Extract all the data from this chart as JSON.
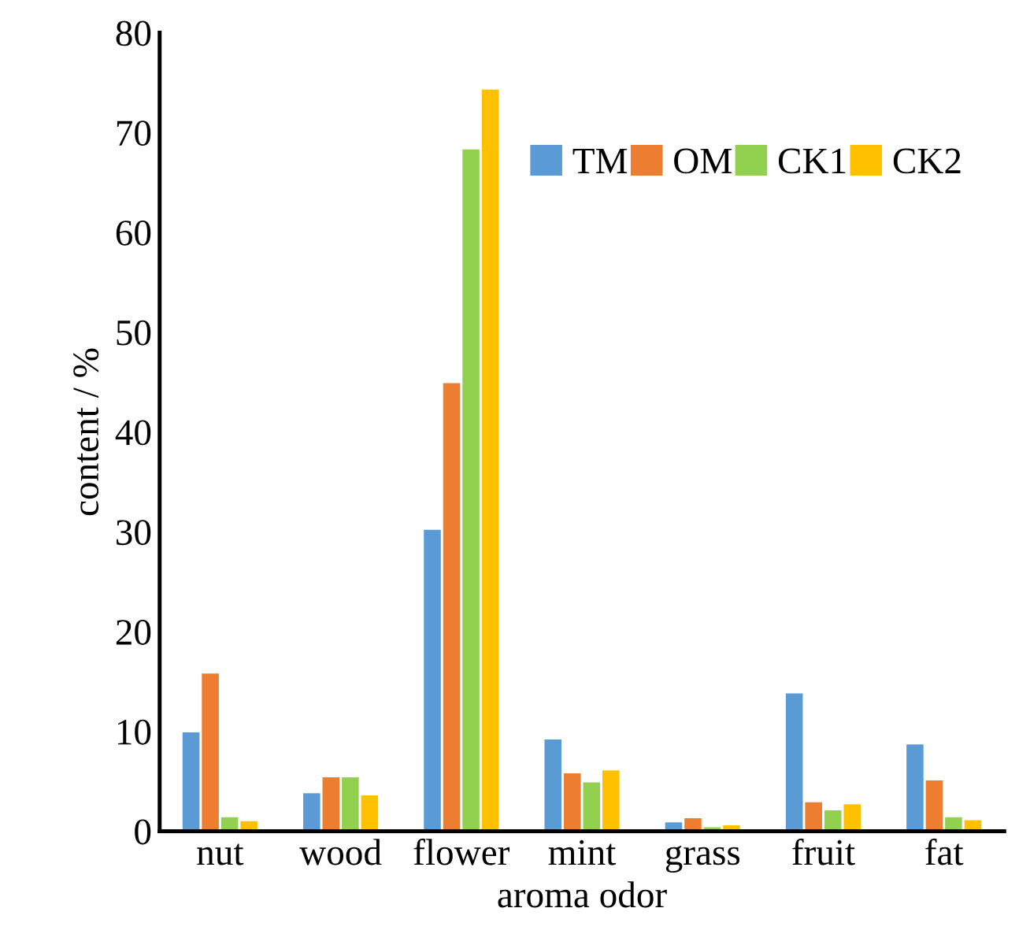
{
  "chart_data": {
    "type": "bar",
    "xlabel": "aroma odor",
    "ylabel": "content / %",
    "categories": [
      "nut",
      "wood",
      "flower",
      "mint",
      "grass",
      "fruit",
      "fat"
    ],
    "series": [
      {
        "name": "TM",
        "color": "#5b9bd5",
        "values": [
          9.9,
          3.8,
          30.2,
          9.2,
          0.9,
          13.8,
          8.7
        ]
      },
      {
        "name": "OM",
        "color": "#ed7d31",
        "values": [
          15.8,
          5.4,
          44.9,
          5.8,
          1.3,
          2.9,
          5.1
        ]
      },
      {
        "name": "CK1",
        "color": "#92d050",
        "values": [
          1.4,
          5.4,
          68.3,
          4.9,
          0.4,
          2.1,
          1.4
        ]
      },
      {
        "name": "CK2",
        "color": "#ffc000",
        "values": [
          1.0,
          3.6,
          74.3,
          6.1,
          0.6,
          2.7,
          1.1
        ]
      }
    ],
    "ylim": [
      0,
      80
    ],
    "yticks": [
      0,
      10,
      20,
      30,
      40,
      50,
      60,
      70,
      80
    ],
    "legend": "top right",
    "grid": false
  }
}
